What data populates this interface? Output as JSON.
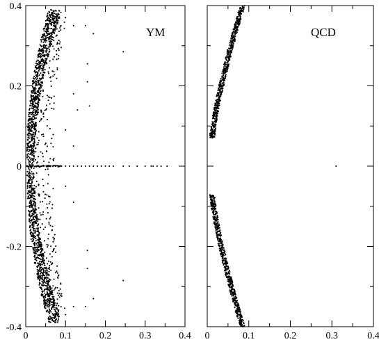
{
  "chart_data": [
    {
      "type": "scatter",
      "panel_label": "YM",
      "xlim": [
        0,
        0.4
      ],
      "ylim": [
        -0.4,
        0.4
      ],
      "x_ticks": [
        "0",
        "0.1",
        "0.2",
        "0.3",
        "0.4"
      ],
      "y_ticks": [
        "-0.4",
        "-0.2",
        "0",
        "0.2",
        "0.4"
      ],
      "grid": false,
      "series": [
        {
          "description_values": "x = real part, y = imaginary part",
          "band": {
            "y_range": [
              -0.39,
              0.39
            ],
            "x_center_at_y0": 0.012,
            "x_center_at_edges": 0.075,
            "x_width": 0.028
          },
          "tail_points": [
            [
              0.1,
              0.37
            ],
            [
              0.12,
              0.35
            ],
            [
              0.15,
              0.35
            ],
            [
              0.17,
              0.33
            ],
            [
              0.245,
              0.285
            ],
            [
              0.155,
              0.255
            ],
            [
              0.155,
              0.21
            ],
            [
              0.12,
              0.18
            ],
            [
              0.13,
              0.14
            ],
            [
              0.16,
              0.15
            ],
            [
              0.1,
              0.09
            ],
            [
              0.12,
              0.05
            ],
            [
              0.1,
              -0.05
            ],
            [
              0.12,
              -0.09
            ],
            [
              0.155,
              -0.21
            ],
            [
              0.155,
              -0.255
            ],
            [
              0.245,
              -0.285
            ],
            [
              0.17,
              -0.33
            ],
            [
              0.15,
              -0.35
            ],
            [
              0.12,
              -0.35
            ],
            [
              0.1,
              -0.37
            ]
          ],
          "real_axis_points": [
            0.015,
            0.03,
            0.045,
            0.06,
            0.075,
            0.09,
            0.1,
            0.11,
            0.12,
            0.13,
            0.14,
            0.15,
            0.16,
            0.17,
            0.18,
            0.19,
            0.2,
            0.21,
            0.22,
            0.245,
            0.26,
            0.28,
            0.3,
            0.315,
            0.32,
            0.33,
            0.34,
            0.355
          ]
        }
      ]
    },
    {
      "type": "scatter",
      "panel_label": "QCD",
      "xlim": [
        0,
        0.4
      ],
      "ylim": [
        -0.4,
        0.4
      ],
      "x_ticks": [
        "0",
        "0.1",
        "0.2",
        "0.3",
        "0.4"
      ],
      "grid": false,
      "series": [
        {
          "description_values": "x = real part, y = imaginary part",
          "upper_arc": {
            "y_range": [
              0.07,
              0.4
            ],
            "x_at_low": 0.012,
            "x_at_high": 0.085,
            "x_width": 0.012
          },
          "lower_arc": {
            "y_range": [
              -0.4,
              -0.07
            ],
            "x_at_low": 0.085,
            "x_at_high": 0.012,
            "x_width": 0.012
          },
          "isolated_points": [
            [
              0.31,
              0.0
            ]
          ]
        }
      ]
    }
  ]
}
